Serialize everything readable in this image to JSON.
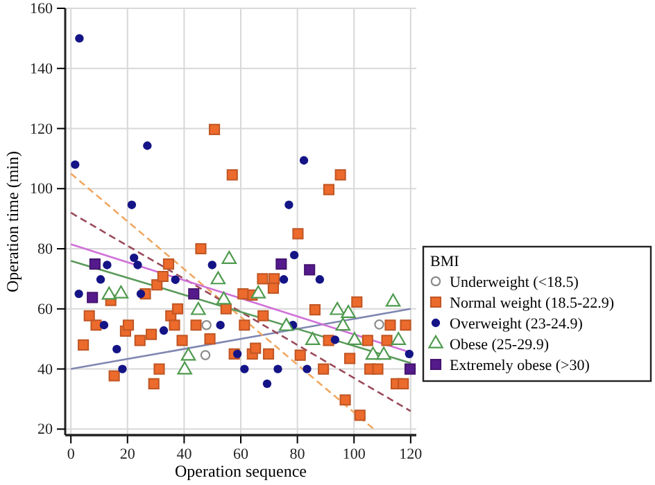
{
  "chart_data": {
    "type": "scatter",
    "xlabel": "Operation sequence",
    "ylabel": "Operation time (min)",
    "legend_title": "BMI",
    "legend": "right",
    "grid": true,
    "xlim": [
      -2,
      122
    ],
    "ylim": [
      18,
      160
    ],
    "xticks": [
      0,
      20,
      40,
      60,
      80,
      100,
      120
    ],
    "yticks": [
      20,
      40,
      60,
      80,
      100,
      120,
      140,
      160
    ],
    "series": [
      {
        "name": "Underweight (<18.5)",
        "color": "#8a8a8a",
        "marker": "circle",
        "x": [
          47.9,
          47.5,
          108.9
        ],
        "values": [
          54.6,
          44.6,
          54.8
        ]
      },
      {
        "name": "Normal weight (18.5-22.9)",
        "color": "#ec6a2c",
        "marker": "square",
        "x": [
          50.7,
          57,
          95.2,
          91.1,
          80.2,
          4.4,
          6.5,
          8.9,
          14.1,
          19.3,
          20.3,
          15.3,
          24.4,
          26.3,
          28.4,
          29.3,
          31.2,
          30.4,
          32.5,
          34.5,
          35.3,
          36.6,
          37.7,
          39.3,
          44.2,
          45.9,
          49.1,
          54.8,
          61.3,
          57.7,
          64,
          60.8,
          64.1,
          65.2,
          69.8,
          67.7,
          71.8,
          71.5,
          67.9,
          81,
          86.2,
          89.2,
          91,
          96.9,
          98.5,
          101,
          102.1,
          105.6,
          108.4,
          104.8,
          111.6,
          112.8,
          118.2,
          114.9,
          117.4
        ],
        "values": [
          119.7,
          104.6,
          104.6,
          99.7,
          85,
          48,
          57.7,
          54.6,
          62.8,
          52.6,
          54.6,
          37.7,
          49.5,
          65,
          51.5,
          35.1,
          40,
          68,
          70.8,
          74.9,
          57.7,
          54.6,
          60,
          49.5,
          54.6,
          80,
          50,
          60,
          54.6,
          45,
          64.6,
          65,
          45,
          46.9,
          45,
          70,
          70,
          66.9,
          57.7,
          44.6,
          59.7,
          40,
          49.5,
          29.7,
          43.5,
          62.3,
          24.6,
          40,
          40,
          49.5,
          49.5,
          54.6,
          54.6,
          35.1,
          35.1
        ]
      },
      {
        "name": "Overweight (23-24.9)",
        "color": "#141487",
        "marker": "circle",
        "x": [
          3,
          1.5,
          27,
          21.5,
          82.3,
          77,
          2.8,
          10.5,
          12.8,
          11.7,
          22.3,
          23.6,
          24.7,
          16.2,
          18.2,
          32.8,
          36.9,
          49.9,
          52.8,
          58.8,
          61.3,
          73.1,
          69.3,
          75.2,
          78.9,
          87.9,
          78.4,
          83.4,
          93.3,
          119.5
        ],
        "values": [
          150,
          108,
          114.3,
          94.6,
          109.4,
          94.6,
          65,
          69.8,
          74.6,
          54.6,
          77,
          74.6,
          65,
          46.6,
          40,
          52.8,
          69.7,
          74.6,
          54.6,
          45,
          40,
          40,
          35.1,
          69.8,
          77.9,
          69.8,
          54.6,
          40,
          49.7,
          45
        ]
      },
      {
        "name": "Obese (25-29.9)",
        "color": "#4e9a4e",
        "marker": "triangle",
        "x": [
          13.5,
          17.7,
          45,
          41.5,
          40.2,
          55.9,
          52,
          54,
          66.2,
          76.1,
          85.4,
          94.1,
          98,
          96.1,
          100.2,
          106.7,
          110.5,
          113.8,
          115.7
        ],
        "values": [
          64.6,
          65,
          59.5,
          44.3,
          39.7,
          76.5,
          69.7,
          63,
          65,
          54.2,
          49.5,
          59.5,
          58.5,
          54.3,
          49.5,
          44.6,
          44.6,
          62.3,
          49.5
        ]
      },
      {
        "name": "Extremely obese (>30)",
        "color": "#551a8b",
        "marker": "square",
        "x": [
          8.5,
          7.6,
          43.4,
          74.3,
          84.3,
          119.8
        ],
        "values": [
          74.9,
          63.8,
          65,
          74.9,
          73,
          40
        ]
      },
      {
        "type": "line",
        "color": "#7f86b0",
        "line_style": "solid",
        "x": [
          0,
          120
        ],
        "values": [
          40,
          60
        ]
      },
      {
        "type": "line",
        "color": "#f0a860",
        "line_style": "dashed",
        "x": [
          0,
          107
        ],
        "values": [
          105,
          20
        ]
      },
      {
        "type": "line",
        "color": "#9a4a5a",
        "line_style": "dashed",
        "x": [
          0,
          120
        ],
        "values": [
          92,
          26
        ]
      },
      {
        "type": "line",
        "color": "#5a9a5a",
        "line_style": "solid",
        "x": [
          0,
          120
        ],
        "values": [
          76,
          42
        ]
      },
      {
        "type": "line",
        "color": "#d070d8",
        "line_style": "solid",
        "x": [
          0,
          120
        ],
        "values": [
          81.5,
          45.5
        ]
      }
    ]
  }
}
